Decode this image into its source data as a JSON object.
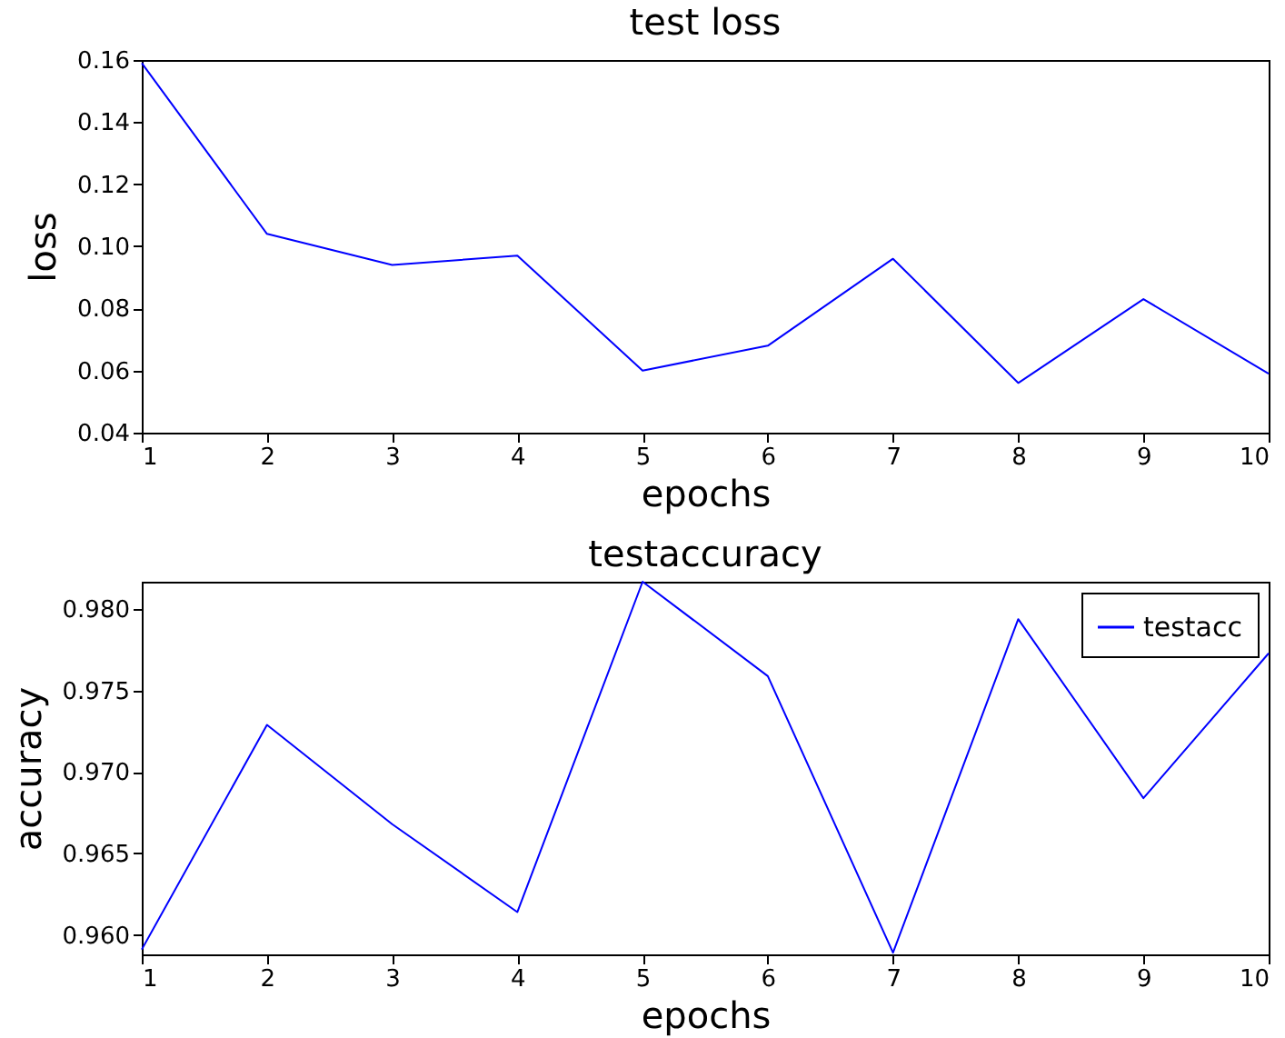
{
  "chart_data": [
    {
      "type": "line",
      "title": "test loss",
      "xlabel": "epochs",
      "ylabel": "loss",
      "x": [
        1,
        2,
        3,
        4,
        5,
        6,
        7,
        8,
        9,
        10
      ],
      "xlim": [
        1,
        10
      ],
      "xticks": [
        1,
        2,
        3,
        4,
        5,
        6,
        7,
        8,
        9,
        10
      ],
      "ylim": [
        0.04,
        0.16
      ],
      "yticks": [
        {
          "value": 0.04,
          "label": "0.04"
        },
        {
          "value": 0.06,
          "label": "0.06"
        },
        {
          "value": 0.08,
          "label": "0.08"
        },
        {
          "value": 0.1,
          "label": "0.10"
        },
        {
          "value": 0.12,
          "label": "0.12"
        },
        {
          "value": 0.14,
          "label": "0.14"
        },
        {
          "value": 0.16,
          "label": "0.16"
        }
      ],
      "grid": false,
      "legend": false,
      "series": [
        {
          "color": "#0000ff",
          "values": [
            0.159,
            0.104,
            0.094,
            0.097,
            0.06,
            0.068,
            0.096,
            0.056,
            0.083,
            0.059
          ]
        }
      ]
    },
    {
      "type": "line",
      "title": "testaccuracy",
      "xlabel": "epochs",
      "ylabel": "accuracy",
      "x": [
        1,
        2,
        3,
        4,
        5,
        6,
        7,
        8,
        9,
        10
      ],
      "xlim": [
        1,
        10
      ],
      "xticks": [
        1,
        2,
        3,
        4,
        5,
        6,
        7,
        8,
        9,
        10
      ],
      "ylim": [
        0.9588,
        0.9817
      ],
      "yticks": [
        {
          "value": 0.96,
          "label": "0.960"
        },
        {
          "value": 0.965,
          "label": "0.965"
        },
        {
          "value": 0.97,
          "label": "0.970"
        },
        {
          "value": 0.975,
          "label": "0.975"
        },
        {
          "value": 0.98,
          "label": "0.980"
        }
      ],
      "grid": false,
      "legend": "top right",
      "series": [
        {
          "name": "testacc",
          "color": "#0000ff",
          "values": [
            0.9591,
            0.9729,
            0.9668,
            0.9614,
            0.9817,
            0.9759,
            0.9589,
            0.9794,
            0.9684,
            0.9773
          ]
        }
      ]
    }
  ]
}
